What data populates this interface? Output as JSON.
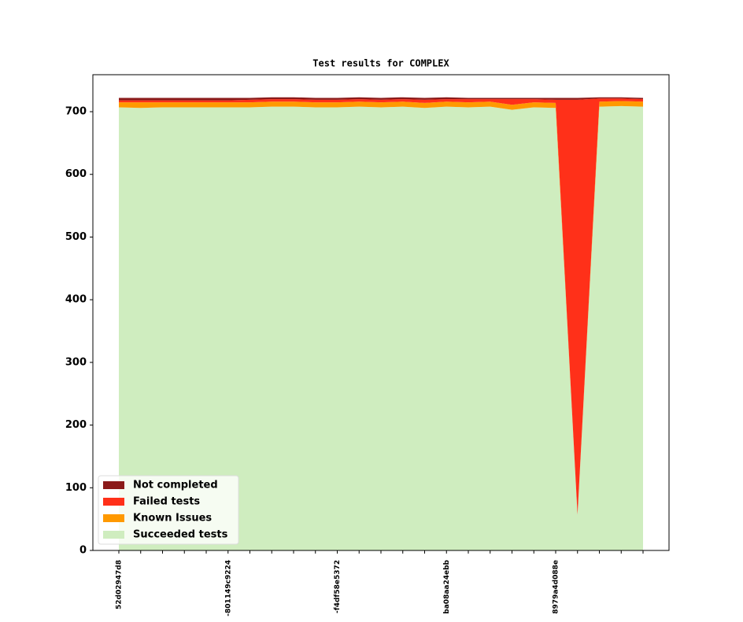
{
  "chart_data": {
    "type": "stacked-area",
    "title": "Test results for COMPLEX",
    "categories": [
      "52d02947d8",
      null,
      null,
      null,
      null,
      "-801149c9224",
      null,
      null,
      null,
      null,
      "-f4df58e5372",
      null,
      null,
      null,
      null,
      "ba08aa24ebb",
      null,
      null,
      null,
      null,
      "8979a4d088e",
      null,
      null,
      null,
      null
    ],
    "series": [
      {
        "name": "Not completed",
        "color": "#8b1a1a",
        "values": [
          4,
          4,
          4,
          4,
          4,
          4,
          3,
          3,
          3,
          3,
          3,
          3,
          3,
          3,
          3,
          3,
          2,
          2,
          2,
          2,
          3,
          3,
          2,
          2,
          2
        ]
      },
      {
        "name": "Failed tests",
        "color": "#ff3019",
        "values": [
          3,
          3,
          3,
          3,
          3,
          3,
          4,
          4,
          4,
          4,
          4,
          4,
          4,
          4,
          5,
          4,
          5,
          4,
          9,
          5,
          5,
          662,
          5,
          4,
          4
        ]
      },
      {
        "name": "Known Issues",
        "color": "#ff9900",
        "values": [
          8,
          9,
          8,
          8,
          8,
          8,
          8,
          8,
          8,
          8,
          8,
          8,
          8,
          8,
          8,
          8,
          8,
          8,
          8,
          8,
          8,
          0,
          8,
          8,
          8
        ]
      },
      {
        "name": "Succeeded tests",
        "color": "#cfedbf",
        "values": [
          707,
          706,
          707,
          707,
          707,
          707,
          707,
          708,
          708,
          707,
          707,
          708,
          707,
          708,
          706,
          708,
          707,
          708,
          703,
          707,
          706,
          57,
          708,
          709,
          708
        ]
      }
    ],
    "ylim": [
      0,
      759
    ],
    "yticks": [
      0,
      100,
      200,
      300,
      400,
      500,
      600,
      700
    ],
    "legend": "lower left"
  }
}
